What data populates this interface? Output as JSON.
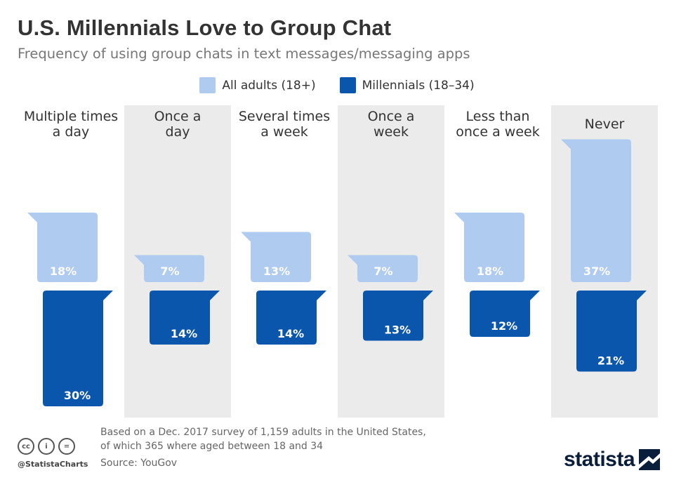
{
  "header": {
    "title": "U.S. Millennials Love to Group Chat",
    "subtitle": "Frequency of using group chats in text messages/messaging apps"
  },
  "colors": {
    "all_adults": "#afcbef",
    "millennials": "#0b56ad",
    "band": "#ebebeb"
  },
  "chart_data": {
    "type": "bar",
    "title": "U.S. Millennials Love to Group Chat",
    "subtitle": "Frequency of using group chats in text messages/messaging apps",
    "unit": "%",
    "categories": [
      [
        "Multiple times",
        "a day"
      ],
      [
        "Once a",
        "day"
      ],
      [
        "Several times",
        "a week"
      ],
      [
        "Once a",
        "week"
      ],
      [
        "Less than",
        "once a week"
      ],
      [
        "Never"
      ]
    ],
    "series": [
      {
        "name": "All adults (18+)",
        "values": [
          18,
          7,
          13,
          7,
          18,
          37
        ],
        "labels": [
          "18%",
          "7%",
          "13%",
          "7%",
          "18%",
          "37%"
        ]
      },
      {
        "name": "Millennials (18–34)",
        "values": [
          30,
          14,
          14,
          13,
          12,
          21
        ],
        "labels": [
          "30%",
          "14%",
          "14%",
          "13%",
          "12%",
          "21%"
        ]
      }
    ],
    "legend": "top-center",
    "grid": false
  },
  "footer": {
    "note_line1": "Based on a Dec. 2017 survey of 1,159 adults in the United States,",
    "note_line2": "of which 365 where aged between 18 and 34",
    "source": "Source: YouGov",
    "handle": "@StatistaCharts",
    "cc_icons": [
      "cc",
      "i",
      "="
    ],
    "brand": "statista"
  }
}
